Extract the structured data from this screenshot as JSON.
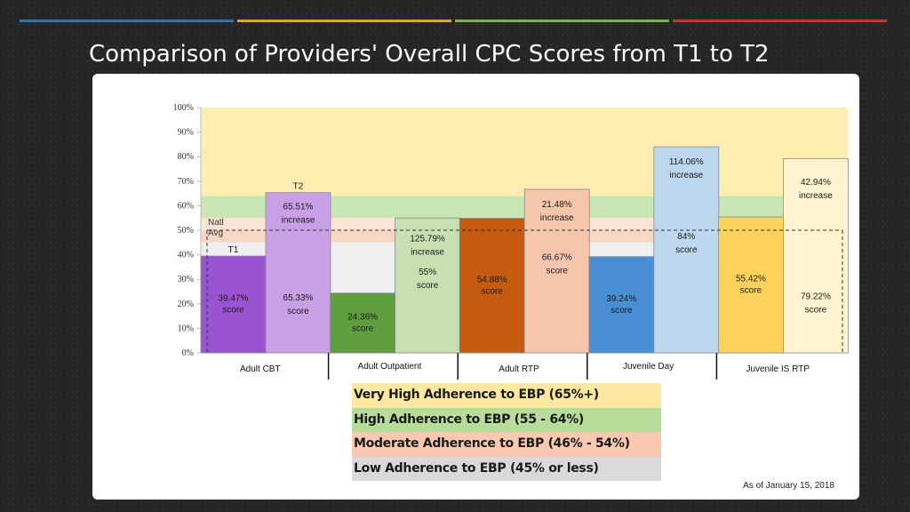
{
  "slide": {
    "title": "Comparison of Providers' Overall CPC Scores from T1 to T2",
    "footnote": "As of January 15, 2018",
    "top_line_colors": [
      "#2e75b6",
      "#e6a12e",
      "#7ab648",
      "#c0392b"
    ]
  },
  "legend": [
    {
      "label": "Very High Adherence to EBP (65%+)",
      "color": "#fce8a0"
    },
    {
      "label": "High Adherence to EBP (55 - 64%)",
      "color": "#b8dc9a"
    },
    {
      "label": "Moderate Adherence to EBP (46% - 54%)",
      "color": "#f8c8b0"
    },
    {
      "label": "Low Adherence to EBP (45% or less)",
      "color": "#d9d9d9"
    }
  ],
  "chart_data": {
    "type": "bar",
    "ylim": [
      0,
      100
    ],
    "yticks": [
      "0%",
      "10%",
      "20%",
      "30%",
      "40%",
      "50%",
      "60%",
      "70%",
      "80%",
      "90%",
      "100%"
    ],
    "bands": [
      {
        "from": 0,
        "to": 45,
        "color": "#efefef"
      },
      {
        "from": 45,
        "to": 50,
        "color": "#fad7c4"
      },
      {
        "from": 50,
        "to": 55,
        "color": "#fbe4d6"
      },
      {
        "from": 55,
        "to": 64,
        "color": "#c9e5b4"
      },
      {
        "from": 64,
        "to": 100,
        "color": "#fdedb0"
      }
    ],
    "natl_avg": {
      "value": 50,
      "label_line1": "Natl",
      "label_line2": "Avg"
    },
    "groups": [
      {
        "category": "Adult CBT",
        "t1": {
          "value": 39.47,
          "label": [
            "39.47%",
            "score"
          ],
          "color": "#9b54d1"
        },
        "t2": {
          "value": 65.33,
          "label": [
            "65.33%",
            "score"
          ],
          "color": "#c9a0e6"
        },
        "increase": [
          "65.51%",
          "increase"
        ]
      },
      {
        "category": "Adult Outpatient",
        "t1": {
          "value": 24.36,
          "label": [
            "24.36%",
            "score"
          ],
          "color": "#5e9e3c"
        },
        "t2": {
          "value": 55,
          "label": [
            "55%",
            "score"
          ],
          "color": "#c6e0b2"
        },
        "increase": [
          "125.79%",
          "increase"
        ]
      },
      {
        "category": "Adult RTP",
        "t1": {
          "value": 54.88,
          "label": [
            "54.88%",
            "score"
          ],
          "color": "#c55a11"
        },
        "t2": {
          "value": 66.67,
          "label": [
            "66.67%",
            "score"
          ],
          "color": "#f6c6ac"
        },
        "increase": [
          "21.48%",
          "increase"
        ]
      },
      {
        "category": "Juvenile Day",
        "t1": {
          "value": 39.24,
          "label": [
            "39.24%",
            "score"
          ],
          "color": "#4a8fd3"
        },
        "t2": {
          "value": 84,
          "label": [
            "84%",
            "score"
          ],
          "color": "#bcd7ee"
        },
        "increase": [
          "114.06%",
          "increase"
        ]
      },
      {
        "category": "Juvenile IS RTP",
        "t1": {
          "value": 55.42,
          "label": [
            "55.42%",
            "score"
          ],
          "color": "#fcd15c"
        },
        "t2": {
          "value": 79.22,
          "label": [
            "79.22%",
            "score"
          ],
          "color": "#fff3d0"
        },
        "increase": [
          "42.94%",
          "increase"
        ]
      }
    ],
    "annotations": {
      "t1": "T1",
      "t2": "T2"
    }
  }
}
